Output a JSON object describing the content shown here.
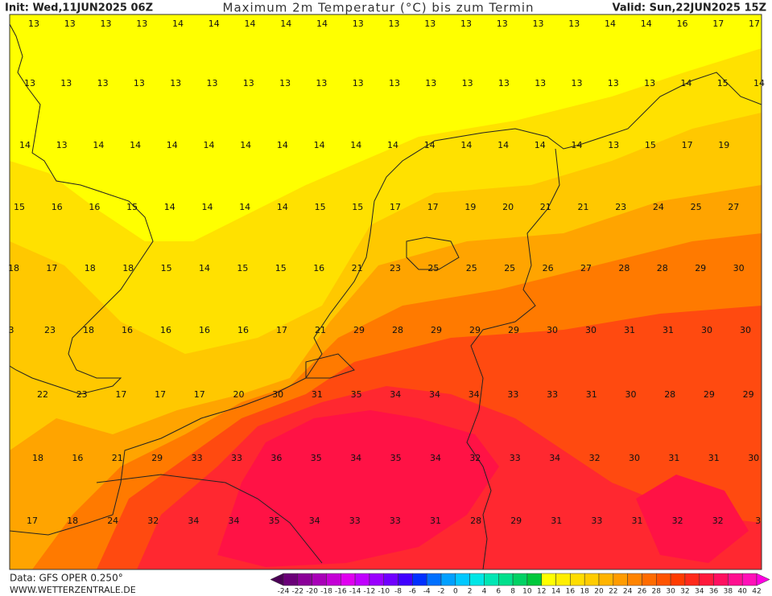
{
  "header": {
    "init": "Init: Wed,11JUN2025 06Z",
    "title": "Maximum 2m Temperatur (°C) bis zum Termin",
    "valid": "Valid: Sun,22JUN2025 15Z"
  },
  "map": {
    "rows": [
      [
        13,
        13,
        13,
        13,
        14,
        14,
        14,
        14,
        14,
        13,
        13,
        13,
        13,
        13,
        13,
        13,
        14,
        14,
        16,
        17,
        17
      ],
      [
        13,
        13,
        13,
        13,
        13,
        13,
        13,
        13,
        13,
        13,
        13,
        13,
        13,
        13,
        13,
        13,
        13,
        13,
        14,
        15,
        14
      ],
      [
        14,
        13,
        14,
        14,
        14,
        14,
        14,
        14,
        14,
        14,
        14,
        14,
        14,
        14,
        14,
        14,
        13,
        15,
        17,
        19
      ],
      [
        15,
        16,
        16,
        15,
        14,
        14,
        14,
        14,
        15,
        15,
        17,
        17,
        19,
        20,
        21,
        21,
        23,
        24,
        25,
        27
      ],
      [
        18,
        17,
        18,
        18,
        15,
        14,
        15,
        15,
        16,
        21,
        23,
        25,
        25,
        25,
        26,
        27,
        28,
        28,
        29,
        30
      ],
      [
        3,
        23,
        18,
        16,
        16,
        16,
        16,
        17,
        21,
        29,
        28,
        29,
        29,
        29,
        30,
        30,
        31,
        31,
        30,
        30
      ],
      [
        22,
        23,
        17,
        17,
        17,
        20,
        30,
        31,
        35,
        34,
        34,
        34,
        33,
        33,
        31,
        30,
        28,
        29,
        29
      ],
      [
        18,
        16,
        21,
        29,
        33,
        33,
        36,
        35,
        34,
        35,
        34,
        32,
        33,
        34,
        32,
        30,
        31,
        31,
        30
      ],
      [
        17,
        18,
        24,
        32,
        34,
        34,
        35,
        34,
        33,
        33,
        31,
        28,
        29,
        31,
        33,
        31,
        32,
        32,
        3
      ]
    ]
  },
  "legend": {
    "ticks": [
      -24,
      -22,
      -20,
      -18,
      -16,
      -14,
      -12,
      -10,
      -8,
      -6,
      -4,
      -2,
      0,
      2,
      4,
      6,
      8,
      10,
      12,
      14,
      16,
      18,
      20,
      22,
      24,
      26,
      28,
      30,
      32,
      34,
      36,
      38,
      40,
      42
    ],
    "colors": [
      "#4b0055",
      "#6a0078",
      "#8a0098",
      "#a800b8",
      "#c400d6",
      "#e000f0",
      "#c000ff",
      "#9a00ff",
      "#7000ff",
      "#4000ff",
      "#0030ff",
      "#0070ff",
      "#00a0ff",
      "#00c8ff",
      "#00e6e6",
      "#00e6b4",
      "#00e08c",
      "#00d264",
      "#00c83c",
      "#ffff00",
      "#ffee00",
      "#ffdd00",
      "#ffcc00",
      "#ffb400",
      "#ff9c00",
      "#ff8400",
      "#ff6c00",
      "#ff5400",
      "#ff3c00",
      "#ff2a1a",
      "#ff1a3c",
      "#ff1060",
      "#ff1090",
      "#ff10b8",
      "#ff00e0"
    ]
  },
  "footer": {
    "source": "Data: GFS OPER 0.250°",
    "website": "WWW.WETTERZENTRALE.DE"
  }
}
